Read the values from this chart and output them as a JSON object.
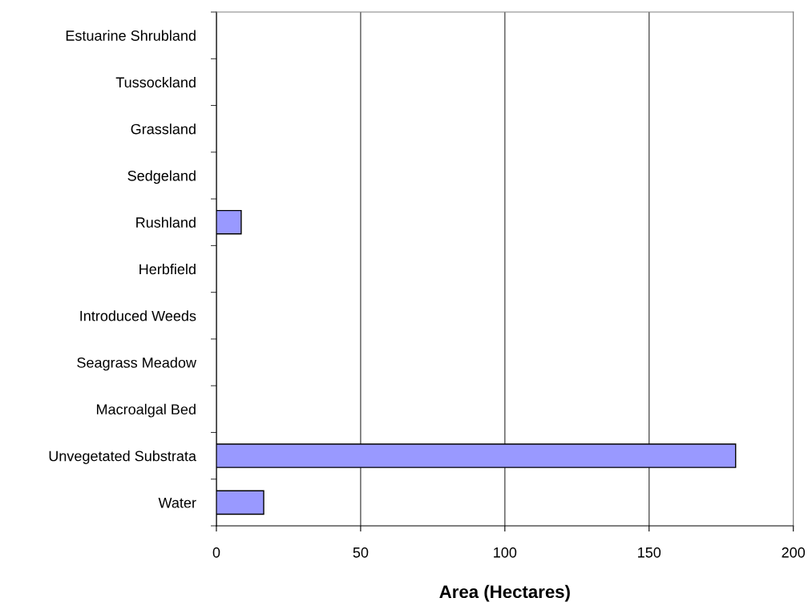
{
  "chart_data": {
    "type": "bar",
    "orientation": "horizontal",
    "xlabel": "Area (Hectares)",
    "categories": [
      "Estuarine Shrubland",
      "Tussockland",
      "Grassland",
      "Sedgeland",
      "Rushland",
      "Herbfield",
      "Introduced Weeds",
      "Seagrass Meadow",
      "Macroalgal Bed",
      "Unvegetated Substrata",
      "Water"
    ],
    "values": [
      0,
      0,
      0,
      0,
      8.6,
      0,
      0,
      0,
      0,
      180,
      16.4
    ],
    "color": "#9999ff",
    "xlim": [
      0,
      200
    ],
    "xticks": [
      0,
      50,
      100,
      150,
      200
    ],
    "grid": "x",
    "legend": false
  }
}
